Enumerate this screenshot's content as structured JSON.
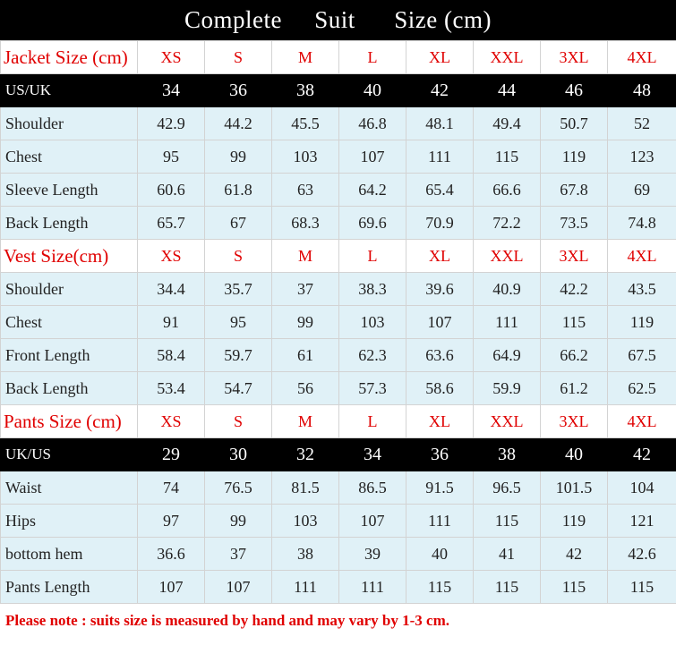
{
  "title": "Complete     Suit      Size (cm)",
  "sizes": [
    "XS",
    "S",
    "M",
    "L",
    "XL",
    "XXL",
    "3XL",
    "4XL"
  ],
  "sections": [
    {
      "header_label": "Jacket Size (cm)",
      "region_label": "US/UK",
      "region_values": [
        "34",
        "36",
        "38",
        "40",
        "42",
        "44",
        "46",
        "48"
      ],
      "rows": [
        {
          "label": "Shoulder",
          "values": [
            "42.9",
            "44.2",
            "45.5",
            "46.8",
            "48.1",
            "49.4",
            "50.7",
            "52"
          ]
        },
        {
          "label": "Chest",
          "values": [
            "95",
            "99",
            "103",
            "107",
            "111",
            "115",
            "119",
            "123"
          ]
        },
        {
          "label": "Sleeve Length",
          "values": [
            "60.6",
            "61.8",
            "63",
            "64.2",
            "65.4",
            "66.6",
            "67.8",
            "69"
          ]
        },
        {
          "label": "Back Length",
          "values": [
            "65.7",
            "67",
            "68.3",
            "69.6",
            "70.9",
            "72.2",
            "73.5",
            "74.8"
          ]
        }
      ]
    },
    {
      "header_label": "Vest  Size(cm)",
      "rows": [
        {
          "label": "Shoulder",
          "values": [
            "34.4",
            "35.7",
            "37",
            "38.3",
            "39.6",
            "40.9",
            "42.2",
            "43.5"
          ]
        },
        {
          "label": "Chest",
          "values": [
            "91",
            "95",
            "99",
            "103",
            "107",
            "111",
            "115",
            "119"
          ]
        },
        {
          "label": "Front Length",
          "values": [
            "58.4",
            "59.7",
            "61",
            "62.3",
            "63.6",
            "64.9",
            "66.2",
            "67.5"
          ]
        },
        {
          "label": "Back Length",
          "values": [
            "53.4",
            "54.7",
            "56",
            "57.3",
            "58.6",
            "59.9",
            "61.2",
            "62.5"
          ]
        }
      ]
    },
    {
      "header_label": "Pants Size (cm)",
      "region_label": "UK/US",
      "region_values": [
        "29",
        "30",
        "32",
        "34",
        "36",
        "38",
        "40",
        "42"
      ],
      "rows": [
        {
          "label": "Waist",
          "values": [
            "74",
            "76.5",
            "81.5",
            "86.5",
            "91.5",
            "96.5",
            "101.5",
            "104"
          ]
        },
        {
          "label": "Hips",
          "values": [
            "97",
            "99",
            "103",
            "107",
            "111",
            "115",
            "119",
            "121"
          ]
        },
        {
          "label": "bottom hem",
          "values": [
            "36.6",
            "37",
            "38",
            "39",
            "40",
            "41",
            "42",
            "42.6"
          ]
        },
        {
          "label": "Pants Length",
          "values": [
            "107",
            "107",
            "111",
            "111",
            "115",
            "115",
            "115",
            "115"
          ]
        }
      ]
    }
  ],
  "note": "Please note : suits size is measured by hand and may vary by 1-3 cm.",
  "colors": {
    "accent_red": "#e00000",
    "header_black": "#000000",
    "row_blue": "#e0f1f7"
  }
}
